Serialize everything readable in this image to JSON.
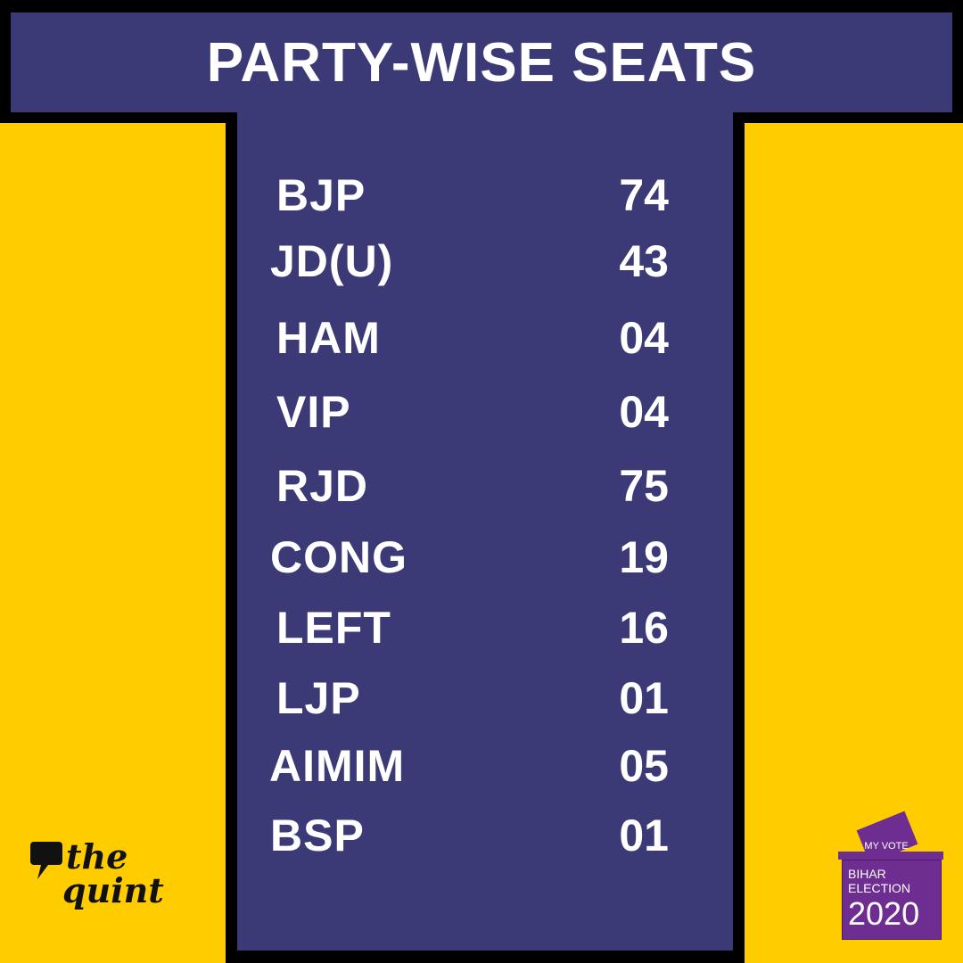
{
  "title": "PARTY-WISE SEATS",
  "parties": [
    {
      "name": "BJP",
      "seats": "74"
    },
    {
      "name": "JD(U)",
      "seats": "43"
    },
    {
      "name": "HAM",
      "seats": "04"
    },
    {
      "name": "VIP",
      "seats": "04"
    },
    {
      "name": "RJD",
      "seats": "75"
    },
    {
      "name": "CONG",
      "seats": "19"
    },
    {
      "name": "LEFT",
      "seats": "16"
    },
    {
      "name": "LJP",
      "seats": "01"
    },
    {
      "name": "AIMIM",
      "seats": "05"
    },
    {
      "name": "BSP",
      "seats": "01"
    }
  ],
  "logo": {
    "line1": "the",
    "line2": "quint",
    "icon": "speech-bubble-icon"
  },
  "badge": {
    "icon": "ballot-box-icon",
    "my_vote": "MY VOTE",
    "line1": "BIHAR",
    "line2": "ELECTION",
    "year": "2020"
  },
  "colors": {
    "navy": "#3C3A76",
    "yellow": "#FFCC00",
    "black": "#000000",
    "purple": "#6E2D91",
    "white": "#FFFFFF"
  }
}
